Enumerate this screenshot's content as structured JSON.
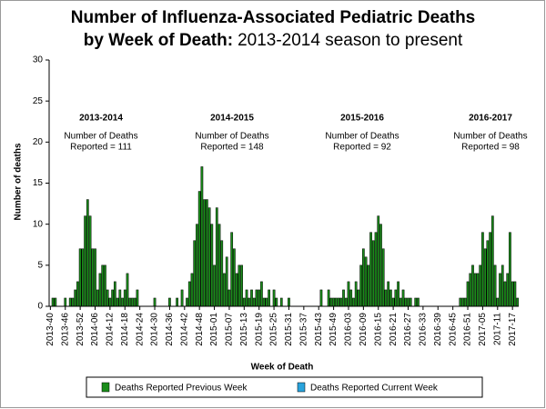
{
  "chart_data": {
    "type": "bar",
    "title": [
      "Number of Influenza-Associated Pediatric Deaths",
      "by Week of Death:",
      "2013-2014 season to present"
    ],
    "x_label": "Week of Death",
    "y_label": "Number of deaths",
    "ylim": [
      0,
      30
    ],
    "yticks": [
      0,
      5,
      10,
      15,
      20,
      25,
      30
    ],
    "annotations": [
      {
        "title": "2013-2014",
        "lines": [
          "Number of Deaths",
          "Reported = 111"
        ]
      },
      {
        "title": "2014-2015",
        "lines": [
          "Number of Deaths",
          "Reported = 148"
        ]
      },
      {
        "title": "2015-2016",
        "lines": [
          "Number of Deaths",
          "Reported = 92"
        ]
      },
      {
        "title": "2016-2017",
        "lines": [
          "Number of Deaths",
          "Reported = 98"
        ]
      }
    ],
    "categories": [
      "2013-40",
      null,
      null,
      null,
      null,
      null,
      "2013-46",
      null,
      null,
      null,
      null,
      null,
      "2013-52",
      null,
      null,
      null,
      null,
      null,
      "2014-06",
      null,
      null,
      null,
      null,
      null,
      "2014-12",
      null,
      null,
      null,
      null,
      null,
      "2014-18",
      null,
      null,
      null,
      null,
      null,
      "2014-24",
      null,
      null,
      null,
      null,
      null,
      "2014-30",
      null,
      null,
      null,
      null,
      null,
      "2014-36",
      null,
      null,
      null,
      null,
      null,
      "2014-42",
      null,
      null,
      null,
      null,
      null,
      "2014-48",
      null,
      null,
      null,
      null,
      null,
      "2015-01",
      null,
      null,
      null,
      null,
      null,
      "2015-07",
      null,
      null,
      null,
      null,
      null,
      "2015-13",
      null,
      null,
      null,
      null,
      null,
      "2015-19",
      null,
      null,
      null,
      null,
      null,
      "2015-25",
      null,
      null,
      null,
      null,
      null,
      "2015-31",
      null,
      null,
      null,
      null,
      null,
      "2015-37",
      null,
      null,
      null,
      null,
      null,
      "2015-43",
      null,
      null,
      null,
      null,
      null,
      "2015-49",
      null,
      null,
      null,
      null,
      null,
      "2016-03",
      null,
      null,
      null,
      null,
      null,
      "2016-09",
      null,
      null,
      null,
      null,
      null,
      "2016-15",
      null,
      null,
      null,
      null,
      null,
      "2016-21",
      null,
      null,
      null,
      null,
      null,
      "2016-27",
      null,
      null,
      null,
      null,
      null,
      "2016-33",
      null,
      null,
      null,
      null,
      null,
      "2016-39",
      null,
      null,
      null,
      null,
      null,
      "2016-45",
      null,
      null,
      null,
      null,
      null,
      "2016-51",
      null,
      null,
      null,
      null,
      null,
      "2017-05",
      null,
      null,
      null,
      null,
      null,
      "2017-11",
      null,
      null,
      null,
      null,
      null,
      "2017-17",
      null,
      null
    ],
    "series": [
      {
        "name": "Deaths Reported Previous Week",
        "color": "#1a8c1a",
        "values": [
          0,
          1,
          1,
          0,
          0,
          0,
          1,
          0,
          1,
          1,
          2,
          3,
          7,
          7,
          11,
          13,
          11,
          7,
          7,
          2,
          4,
          5,
          5,
          2,
          1,
          2,
          3,
          1,
          2,
          1,
          2,
          4,
          1,
          1,
          1,
          2,
          0,
          0,
          0,
          0,
          0,
          0,
          1,
          0,
          0,
          0,
          0,
          0,
          1,
          0,
          0,
          1,
          0,
          2,
          0,
          1,
          3,
          4,
          8,
          10,
          14,
          17,
          13,
          13,
          12,
          10,
          5,
          12,
          10,
          8,
          4,
          6,
          2,
          9,
          7,
          4,
          5,
          5,
          1,
          2,
          1,
          2,
          1,
          2,
          2,
          3,
          1,
          1,
          2,
          0,
          2,
          1,
          0,
          1,
          0,
          0,
          1,
          0,
          0,
          0,
          0,
          0,
          0,
          0,
          0,
          0,
          0,
          0,
          0,
          2,
          0,
          0,
          2,
          1,
          1,
          1,
          1,
          1,
          2,
          1,
          3,
          2,
          1,
          3,
          2,
          5,
          7,
          6,
          5,
          9,
          8,
          9,
          11,
          10,
          7,
          2,
          3,
          2,
          1,
          2,
          3,
          1,
          2,
          1,
          1,
          1,
          0,
          1,
          1,
          0,
          0,
          0,
          0,
          0,
          0,
          0,
          0,
          0,
          0,
          0,
          0,
          0,
          0,
          0,
          0,
          1,
          1,
          1,
          3,
          4,
          5,
          4,
          4,
          5,
          9,
          7,
          8,
          9,
          11,
          5,
          1,
          4,
          5,
          3,
          4,
          9,
          3,
          3,
          1
        ]
      },
      {
        "name": "Deaths Reported Current Week",
        "color": "#29a3dc",
        "values": [
          0,
          0,
          0,
          0,
          0,
          0,
          0,
          0,
          0,
          0,
          0,
          0,
          0,
          0,
          0,
          0,
          0,
          0,
          0,
          0,
          0,
          0,
          0,
          0,
          0,
          0,
          0,
          0,
          0,
          0,
          0,
          0,
          0,
          0,
          0,
          0,
          0,
          0,
          0,
          0,
          0,
          0,
          0,
          0,
          0,
          0,
          0,
          0,
          0,
          0,
          0,
          0,
          0,
          0,
          0,
          0,
          0,
          0,
          0,
          0,
          0,
          0,
          0,
          0,
          0,
          0,
          0,
          0,
          0,
          0,
          0,
          0,
          0,
          0,
          0,
          0,
          0,
          0,
          0,
          0,
          0,
          0,
          0,
          0,
          0,
          0,
          0,
          0,
          0,
          0,
          0,
          0,
          0,
          0,
          0,
          0,
          0,
          0,
          0,
          0,
          0,
          0,
          0,
          0,
          0,
          0,
          0,
          0,
          0,
          0,
          0,
          0,
          0,
          0,
          0,
          0,
          0,
          0,
          0,
          0,
          0,
          0,
          0,
          0,
          0,
          0,
          0,
          0,
          0,
          0,
          0,
          0,
          0,
          0,
          0,
          0,
          0,
          0,
          0,
          0,
          0,
          0,
          0,
          0,
          0,
          0,
          0,
          0,
          0,
          0,
          0,
          0,
          0,
          0,
          0,
          0,
          0,
          0,
          0,
          0,
          0,
          0,
          0,
          0,
          0,
          0,
          0,
          0,
          0,
          0,
          0,
          0,
          0,
          0,
          0,
          0,
          0,
          0,
          0,
          0,
          0,
          0,
          0,
          0,
          0,
          0,
          0,
          0,
          0
        ]
      }
    ],
    "legend": "bottom"
  }
}
